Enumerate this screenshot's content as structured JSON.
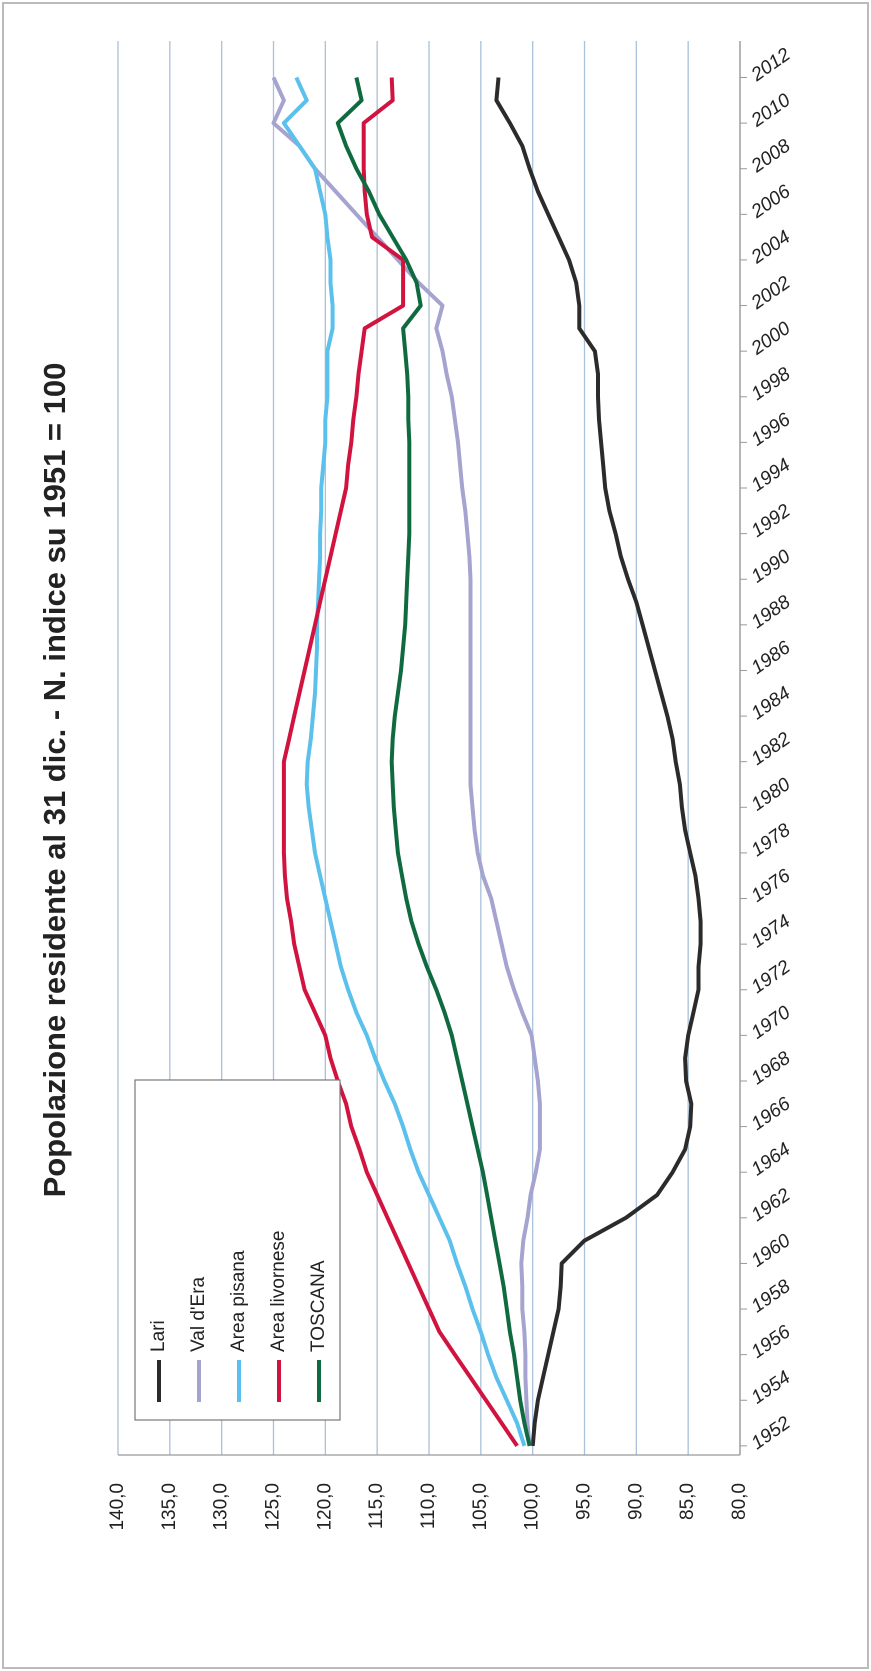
{
  "chart_data": {
    "type": "line",
    "title": "Popolazione residente al 31 dic. - N. indice su 1951 = 100",
    "x": [
      1952,
      1953,
      1954,
      1955,
      1956,
      1957,
      1958,
      1959,
      1960,
      1961,
      1962,
      1963,
      1964,
      1965,
      1966,
      1967,
      1968,
      1969,
      1970,
      1971,
      1972,
      1973,
      1974,
      1975,
      1976,
      1977,
      1978,
      1979,
      1980,
      1981,
      1982,
      1983,
      1984,
      1985,
      1986,
      1987,
      1988,
      1989,
      1990,
      1991,
      1992,
      1993,
      1994,
      1995,
      1996,
      1997,
      1998,
      1999,
      2000,
      2001,
      2002,
      2003,
      2004,
      2005,
      2006,
      2007,
      2008,
      2009,
      2010,
      2011,
      2012
    ],
    "xlim": [
      1951.6,
      2013.6
    ],
    "xticks": [
      1952,
      1954,
      1956,
      1958,
      1960,
      1962,
      1964,
      1966,
      1968,
      1970,
      1972,
      1974,
      1976,
      1978,
      1980,
      1982,
      1984,
      1986,
      1988,
      1990,
      1992,
      1994,
      1996,
      1998,
      2000,
      2002,
      2004,
      2006,
      2008,
      2010,
      2012
    ],
    "ylim": [
      80,
      140
    ],
    "yticks": [
      {
        "value": 80,
        "label": "80,0"
      },
      {
        "value": 85,
        "label": "85,0"
      },
      {
        "value": 90,
        "label": "90,0"
      },
      {
        "value": 95,
        "label": "95,0"
      },
      {
        "value": 100,
        "label": "100,0"
      },
      {
        "value": 105,
        "label": "105,0"
      },
      {
        "value": 110,
        "label": "110,0"
      },
      {
        "value": 115,
        "label": "115,0"
      },
      {
        "value": 120,
        "label": "120,0"
      },
      {
        "value": 125,
        "label": "125,0"
      },
      {
        "value": 130,
        "label": "130,0"
      },
      {
        "value": 135,
        "label": "135,0"
      },
      {
        "value": 140,
        "label": "140,0"
      }
    ],
    "grid": true,
    "legend": "upper-left",
    "series": [
      {
        "name": "Lari",
        "color": "#2b2b2b",
        "values": [
          100,
          99.8,
          99.5,
          99,
          98.5,
          98,
          97.5,
          97.3,
          97.2,
          95,
          91,
          88,
          86.5,
          85.3,
          84.8,
          84.7,
          85.2,
          85.3,
          85,
          84.5,
          84,
          84,
          83.8,
          83.8,
          84,
          84.3,
          84.8,
          85.3,
          85.6,
          85.8,
          86.2,
          86.5,
          87,
          87.6,
          88.2,
          88.8,
          89.4,
          90,
          90.8,
          91.5,
          92,
          92.6,
          93,
          93.2,
          93.4,
          93.6,
          93.7,
          93.7,
          94,
          95.5,
          95.5,
          95.8,
          96.5,
          97.5,
          98.5,
          99.5,
          100.3,
          101,
          102.2,
          103.5,
          103.3
        ]
      },
      {
        "name": "Val d'Era",
        "color": "#a5a3cf",
        "values": [
          100.3,
          100.5,
          100.6,
          100.7,
          100.7,
          100.8,
          101,
          101,
          101.1,
          100.9,
          100.5,
          100.2,
          99.7,
          99.3,
          99.3,
          99.3,
          99.5,
          99.8,
          100.1,
          101,
          101.8,
          102.5,
          103,
          103.5,
          104,
          104.8,
          105.3,
          105.6,
          105.8,
          106,
          106,
          106,
          106,
          106,
          106,
          106,
          106,
          106,
          106,
          106.1,
          106.3,
          106.5,
          106.8,
          107,
          107.2,
          107.5,
          107.8,
          108.3,
          108.7,
          109.3,
          108.7,
          111,
          113,
          115,
          117,
          119,
          121,
          122.5,
          125,
          124,
          125
        ]
      },
      {
        "name": "Area pisana",
        "color": "#5bc0eb",
        "values": [
          100.8,
          101.5,
          102.5,
          103.5,
          104.3,
          105,
          105.8,
          106.5,
          107.3,
          108,
          109,
          110,
          111,
          111.8,
          112.5,
          113.3,
          114.3,
          115.2,
          116,
          117,
          117.8,
          118.5,
          119,
          119.5,
          120,
          120.5,
          121,
          121.3,
          121.6,
          121.8,
          121.7,
          121.4,
          121.2,
          121,
          120.9,
          120.8,
          120.8,
          120.7,
          120.6,
          120.5,
          120.5,
          120.4,
          120.4,
          120.2,
          120,
          120,
          119.8,
          119.8,
          119.8,
          119.3,
          119.3,
          119.5,
          119.5,
          119.8,
          120,
          120.5,
          121,
          122.5,
          124,
          121.8,
          122.8
        ]
      },
      {
        "name": "Area livornese",
        "color": "#d0143f",
        "values": [
          101.5,
          103,
          104.5,
          106,
          107.5,
          109,
          110,
          111,
          112,
          113,
          114,
          115,
          116,
          116.7,
          117.5,
          118,
          118.8,
          119.5,
          120,
          121,
          122,
          122.5,
          123,
          123.3,
          123.7,
          123.9,
          124,
          124,
          124,
          124,
          124,
          123.5,
          123,
          122.5,
          122,
          121.5,
          121,
          120.5,
          120,
          119.5,
          119,
          118.5,
          118,
          117.8,
          117.5,
          117.3,
          117,
          116.8,
          116.5,
          116.2,
          112.5,
          112.5,
          112.5,
          115.5,
          116,
          116.2,
          116.3,
          116.3,
          116.3,
          113.5,
          113.6
        ]
      },
      {
        "name": "TOSCANA",
        "color": "#0f6b3f",
        "values": [
          100.3,
          100.8,
          101.2,
          101.5,
          101.8,
          102.2,
          102.5,
          102.8,
          103.2,
          103.6,
          104,
          104.4,
          104.8,
          105.3,
          105.8,
          106.3,
          106.8,
          107.3,
          107.8,
          108.5,
          109.3,
          110.2,
          111,
          111.7,
          112.2,
          112.6,
          113,
          113.2,
          113.4,
          113.5,
          113.6,
          113.5,
          113.3,
          113,
          112.7,
          112.5,
          112.3,
          112.2,
          112.1,
          112,
          111.9,
          111.9,
          111.9,
          111.9,
          111.9,
          112,
          112,
          112.1,
          112.3,
          112.5,
          110.8,
          111.2,
          112.2,
          113.5,
          114.8,
          115.8,
          117,
          118,
          118.8,
          116.5,
          117
        ]
      }
    ]
  }
}
